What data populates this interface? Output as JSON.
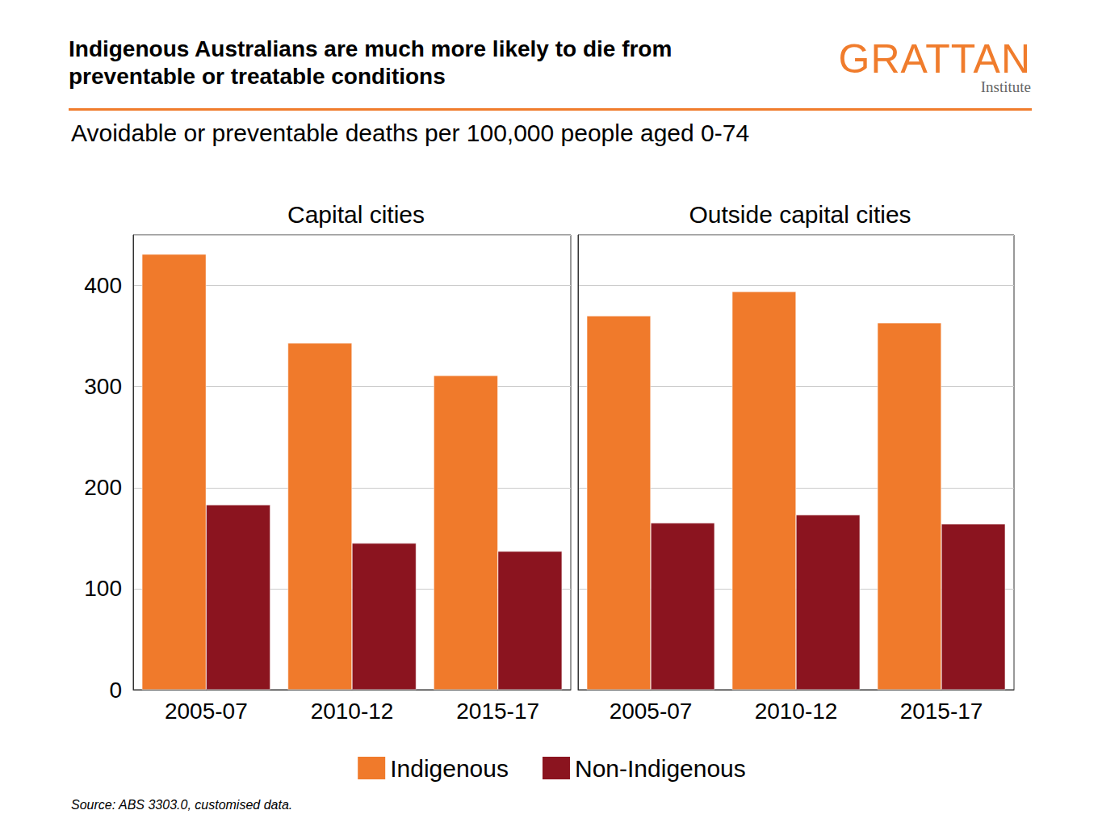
{
  "title": "Indigenous Australians are much more likely to die from preventable or treatable conditions",
  "subtitle": "Avoidable or preventable deaths per 100,000 people aged 0-74",
  "source": "Source: ABS 3303.0, customised data.",
  "brand": {
    "name": "GRATTAN",
    "sub": "Institute"
  },
  "chart_data": [
    {
      "type": "bar",
      "title": "Capital cities",
      "categories": [
        "2005-07",
        "2010-12",
        "2015-17"
      ],
      "series": [
        {
          "name": "Indigenous",
          "color": "#f07a2b",
          "values": [
            431,
            343,
            311
          ]
        },
        {
          "name": "Non-Indigenous",
          "color": "#8b141f",
          "values": [
            183,
            145,
            137
          ]
        }
      ],
      "ylim": [
        0,
        450
      ],
      "yticks": [
        0,
        100,
        200,
        300,
        400
      ],
      "grid": true,
      "legend": "bottom"
    },
    {
      "type": "bar",
      "title": "Outside capital cities",
      "categories": [
        "2005-07",
        "2010-12",
        "2015-17"
      ],
      "series": [
        {
          "name": "Indigenous",
          "color": "#f07a2b",
          "values": [
            370,
            394,
            363
          ]
        },
        {
          "name": "Non-Indigenous",
          "color": "#8b141f",
          "values": [
            165,
            173,
            164
          ]
        }
      ],
      "ylim": [
        0,
        450
      ],
      "yticks": [
        0,
        100,
        200,
        300,
        400
      ],
      "grid": true,
      "tick_labels": "x"
    }
  ]
}
